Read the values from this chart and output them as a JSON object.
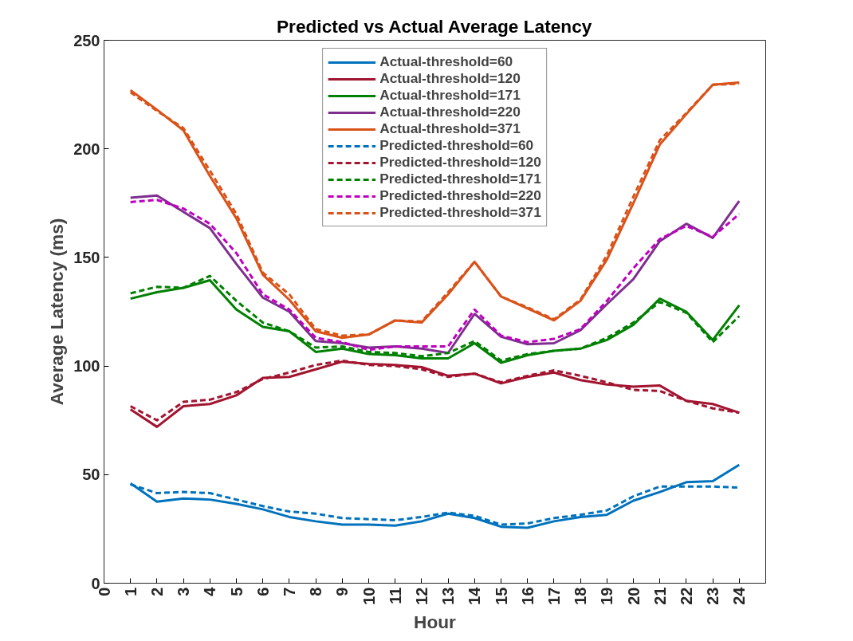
{
  "chart_data": {
    "type": "line",
    "title": "Predicted vs Actual Average Latency",
    "xlabel": "Hour",
    "ylabel": "Average Latency (ms)",
    "x": [
      1,
      2,
      3,
      4,
      5,
      6,
      7,
      8,
      9,
      10,
      11,
      12,
      13,
      14,
      15,
      16,
      17,
      18,
      19,
      20,
      21,
      22,
      23,
      24
    ],
    "xlim": [
      0,
      25
    ],
    "xticks": [
      0,
      1,
      2,
      3,
      4,
      5,
      6,
      7,
      8,
      9,
      10,
      11,
      12,
      13,
      14,
      15,
      16,
      17,
      18,
      19,
      20,
      21,
      22,
      23,
      24
    ],
    "ylim": [
      0,
      250
    ],
    "yticks": [
      0,
      50,
      100,
      150,
      200,
      250
    ],
    "grid": false,
    "legend": "top",
    "marker": "none",
    "series": [
      {
        "name": "Actual-threshold=60",
        "color": "#0072bd",
        "line_style": "solid",
        "values": [
          46,
          37.5,
          39,
          38.5,
          36.5,
          34,
          30.5,
          28.5,
          27,
          27,
          26.5,
          28.5,
          32,
          30,
          26,
          25.5,
          28.5,
          30.5,
          31.5,
          38,
          42,
          46.5,
          47,
          54.5
        ]
      },
      {
        "name": "Actual-threshold=120",
        "color": "#a2142f",
        "line_style": "solid",
        "values": [
          80,
          72,
          81.5,
          82.5,
          86.5,
          94.5,
          95,
          98.5,
          102,
          101,
          100.5,
          99.5,
          95.5,
          96.5,
          92,
          95,
          97,
          93.5,
          91.5,
          90.5,
          91,
          84,
          82.5,
          78.5
        ]
      },
      {
        "name": "Actual-threshold=171",
        "color": "#008000",
        "line_style": "solid",
        "values": [
          131,
          134,
          136,
          139.5,
          126,
          118,
          116,
          106.5,
          108,
          105.5,
          105,
          103.5,
          103.5,
          110.5,
          101.5,
          105,
          107,
          108,
          112,
          119,
          131,
          125,
          112,
          128
        ]
      },
      {
        "name": "Actual-threshold=220",
        "color": "#7e2f8e",
        "line_style": "solid",
        "values": [
          177.5,
          178.5,
          171,
          163.5,
          147,
          131.5,
          125,
          111.5,
          110.5,
          108.5,
          109,
          108,
          106,
          124,
          113.5,
          110,
          110.5,
          116.5,
          128.5,
          140,
          157.5,
          165.5,
          159,
          176
        ]
      },
      {
        "name": "Actual-threshold=371",
        "color": "#d95319",
        "line_style": "solid",
        "values": [
          227,
          218,
          208.5,
          187.5,
          168,
          142,
          130.5,
          116,
          113,
          114.5,
          121,
          120,
          133,
          148,
          132,
          126.5,
          121,
          130,
          149,
          175,
          202,
          216,
          229.5,
          230.5
        ]
      },
      {
        "name": "Predicted-threshold=60",
        "color": "#0072bd",
        "line_style": "dashed",
        "values": [
          45.5,
          41.5,
          42,
          41.5,
          38.5,
          35.5,
          33,
          32,
          30,
          29.5,
          29,
          30.5,
          32.5,
          31,
          27,
          27.5,
          30,
          31.5,
          33.5,
          40,
          44.5,
          44.5,
          44.5,
          44
        ]
      },
      {
        "name": "Predicted-threshold=120",
        "color": "#a2142f",
        "line_style": "dashed",
        "values": [
          81.5,
          75,
          83.5,
          84.5,
          88,
          94,
          97,
          100.5,
          102.5,
          100.5,
          100,
          98.5,
          95,
          96.5,
          92.5,
          95.5,
          98,
          95.5,
          92.5,
          89,
          88.5,
          84,
          80.5,
          78.5
        ]
      },
      {
        "name": "Predicted-threshold=171",
        "color": "#008000",
        "line_style": "dashed",
        "values": [
          133.5,
          136.5,
          136,
          141.5,
          130,
          120,
          116,
          108.5,
          109,
          106.5,
          106,
          104.5,
          106,
          111.5,
          102.5,
          105.5,
          107,
          108,
          113,
          120,
          129.5,
          124.5,
          111,
          123
        ]
      },
      {
        "name": "Predicted-threshold=220",
        "color": "#c000c0",
        "line_style": "dashed",
        "values": [
          175.5,
          176.5,
          172.5,
          165.5,
          152,
          133,
          126,
          113,
          111,
          107.5,
          109,
          109,
          109,
          126,
          114,
          111,
          112.5,
          117,
          130,
          145,
          158.5,
          164.5,
          159.5,
          170
        ]
      },
      {
        "name": "Predicted-threshold=371",
        "color": "#d95319",
        "line_style": "dashed",
        "values": [
          226,
          217.5,
          209.5,
          190,
          170,
          143,
          133,
          117,
          114,
          114.5,
          121,
          120.5,
          134,
          148,
          132,
          127,
          121.5,
          130.5,
          151,
          178,
          204,
          216.5,
          229.5,
          230
        ]
      }
    ]
  }
}
